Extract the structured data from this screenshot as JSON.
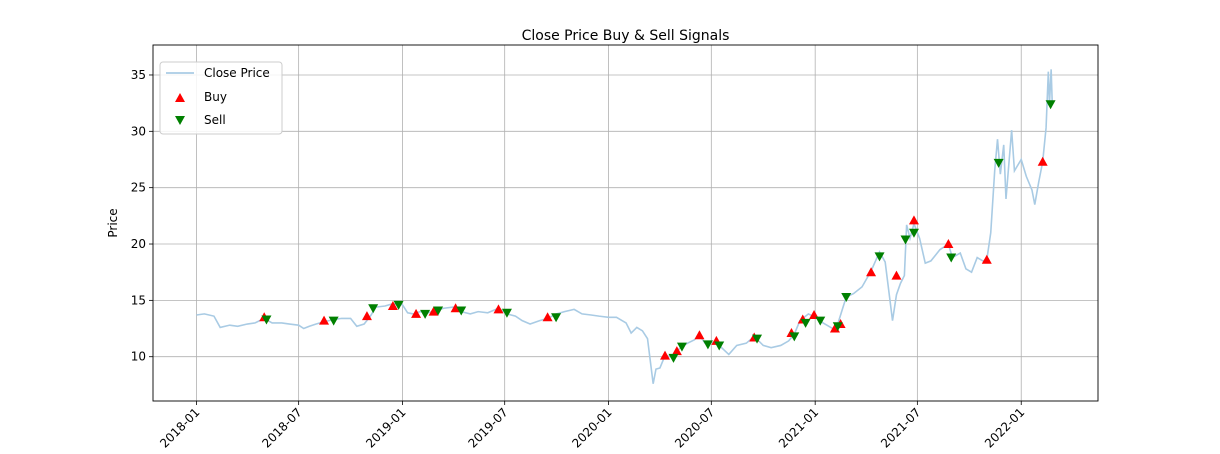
{
  "chart_data": {
    "type": "line",
    "title": "Close Price Buy & Sell Signals",
    "xlabel": "",
    "ylabel": "Price",
    "xlim": [
      "2017-10-16",
      "2022-05-17"
    ],
    "ylim": [
      6.07,
      37.66
    ],
    "grid": true,
    "legend_placement": "top-left",
    "x_ticks": [
      "2018-01",
      "2018-07",
      "2019-01",
      "2019-07",
      "2020-01",
      "2020-07",
      "2021-01",
      "2021-07",
      "2022-01"
    ],
    "y_ticks": [
      10,
      15,
      20,
      25,
      30,
      35
    ],
    "colors": {
      "close": "#a9cbe4",
      "buy": "#ff0000",
      "sell": "#008000",
      "grid": "#b0b0b0"
    },
    "series": [
      {
        "name": "Close Price",
        "type": "line",
        "points": [
          [
            "2018-01-01",
            13.7
          ],
          [
            "2018-01-15",
            13.8
          ],
          [
            "2018-02-01",
            13.6
          ],
          [
            "2018-02-12",
            12.6
          ],
          [
            "2018-03-01",
            12.8
          ],
          [
            "2018-03-15",
            12.7
          ],
          [
            "2018-04-01",
            12.9
          ],
          [
            "2018-04-15",
            13.0
          ],
          [
            "2018-05-01",
            13.4
          ],
          [
            "2018-05-15",
            13.0
          ],
          [
            "2018-06-01",
            13.0
          ],
          [
            "2018-06-15",
            12.9
          ],
          [
            "2018-07-01",
            12.8
          ],
          [
            "2018-07-10",
            12.5
          ],
          [
            "2018-07-20",
            12.7
          ],
          [
            "2018-08-01",
            12.9
          ],
          [
            "2018-08-15",
            13.1
          ],
          [
            "2018-09-01",
            13.3
          ],
          [
            "2018-09-15",
            13.4
          ],
          [
            "2018-10-01",
            13.4
          ],
          [
            "2018-10-12",
            12.7
          ],
          [
            "2018-10-25",
            12.9
          ],
          [
            "2018-11-05",
            13.6
          ],
          [
            "2018-11-15",
            14.4
          ],
          [
            "2018-12-01",
            14.5
          ],
          [
            "2018-12-15",
            14.7
          ],
          [
            "2019-01-01",
            14.6
          ],
          [
            "2019-01-10",
            13.9
          ],
          [
            "2019-01-20",
            13.8
          ],
          [
            "2019-02-01",
            14.0
          ],
          [
            "2019-02-15",
            13.9
          ],
          [
            "2019-03-01",
            14.1
          ],
          [
            "2019-03-15",
            14.3
          ],
          [
            "2019-04-01",
            14.4
          ],
          [
            "2019-04-15",
            14.0
          ],
          [
            "2019-05-01",
            13.8
          ],
          [
            "2019-05-15",
            14.0
          ],
          [
            "2019-06-01",
            13.9
          ],
          [
            "2019-06-20",
            14.3
          ],
          [
            "2019-07-05",
            13.8
          ],
          [
            "2019-07-20",
            13.6
          ],
          [
            "2019-08-01",
            13.2
          ],
          [
            "2019-08-15",
            12.9
          ],
          [
            "2019-09-01",
            13.2
          ],
          [
            "2019-09-15",
            13.4
          ],
          [
            "2019-10-01",
            13.8
          ],
          [
            "2019-10-15",
            14.0
          ],
          [
            "2019-11-01",
            14.2
          ],
          [
            "2019-11-15",
            13.8
          ],
          [
            "2019-12-01",
            13.7
          ],
          [
            "2019-12-15",
            13.6
          ],
          [
            "2020-01-01",
            13.5
          ],
          [
            "2020-01-15",
            13.5
          ],
          [
            "2020-02-01",
            13.0
          ],
          [
            "2020-02-10",
            12.1
          ],
          [
            "2020-02-20",
            12.6
          ],
          [
            "2020-03-01",
            12.3
          ],
          [
            "2020-03-10",
            11.6
          ],
          [
            "2020-03-20",
            7.6
          ],
          [
            "2020-03-25",
            8.9
          ],
          [
            "2020-04-01",
            9.0
          ],
          [
            "2020-04-10",
            10.1
          ],
          [
            "2020-04-20",
            10.0
          ],
          [
            "2020-05-01",
            10.5
          ],
          [
            "2020-05-10",
            10.9
          ],
          [
            "2020-05-20",
            11.2
          ],
          [
            "2020-06-01",
            11.5
          ],
          [
            "2020-06-10",
            11.9
          ],
          [
            "2020-06-20",
            11.2
          ],
          [
            "2020-07-01",
            11.3
          ],
          [
            "2020-07-15",
            11.0
          ],
          [
            "2020-08-01",
            10.2
          ],
          [
            "2020-08-15",
            11.0
          ],
          [
            "2020-09-01",
            11.2
          ],
          [
            "2020-09-15",
            11.8
          ],
          [
            "2020-10-01",
            11.0
          ],
          [
            "2020-10-15",
            10.8
          ],
          [
            "2020-11-01",
            11.0
          ],
          [
            "2020-11-15",
            11.4
          ],
          [
            "2020-11-25",
            12.0
          ],
          [
            "2020-12-05",
            13.2
          ],
          [
            "2020-12-20",
            13.8
          ],
          [
            "2021-01-05",
            13.4
          ],
          [
            "2021-01-15",
            13.0
          ],
          [
            "2021-02-01",
            12.5
          ],
          [
            "2021-02-10",
            12.9
          ],
          [
            "2021-02-25",
            15.3
          ],
          [
            "2021-03-10",
            15.6
          ],
          [
            "2021-03-25",
            16.2
          ],
          [
            "2021-04-10",
            17.6
          ],
          [
            "2021-04-25",
            19.3
          ],
          [
            "2021-05-05",
            18.4
          ],
          [
            "2021-05-18",
            13.2
          ],
          [
            "2021-05-25",
            15.5
          ],
          [
            "2021-06-01",
            16.5
          ],
          [
            "2021-06-08",
            17.2
          ],
          [
            "2021-06-12",
            21.7
          ],
          [
            "2021-06-18",
            20.5
          ],
          [
            "2021-06-25",
            21.8
          ],
          [
            "2021-07-05",
            20.5
          ],
          [
            "2021-07-15",
            18.3
          ],
          [
            "2021-07-25",
            18.5
          ],
          [
            "2021-08-10",
            19.5
          ],
          [
            "2021-08-25",
            20.0
          ],
          [
            "2021-09-01",
            18.8
          ],
          [
            "2021-09-15",
            19.2
          ],
          [
            "2021-09-25",
            17.8
          ],
          [
            "2021-10-05",
            17.5
          ],
          [
            "2021-10-15",
            18.8
          ],
          [
            "2021-10-25",
            18.5
          ],
          [
            "2021-11-01",
            18.6
          ],
          [
            "2021-11-08",
            21.0
          ],
          [
            "2021-11-15",
            26.5
          ],
          [
            "2021-11-20",
            29.3
          ],
          [
            "2021-11-25",
            26.2
          ],
          [
            "2021-12-01",
            28.8
          ],
          [
            "2021-12-05",
            24.0
          ],
          [
            "2021-12-15",
            30.1
          ],
          [
            "2021-12-20",
            26.5
          ],
          [
            "2022-01-01",
            27.5
          ],
          [
            "2022-01-10",
            26.0
          ],
          [
            "2022-01-20",
            24.8
          ],
          [
            "2022-01-25",
            23.5
          ],
          [
            "2022-02-01",
            25.5
          ],
          [
            "2022-02-08",
            27.3
          ],
          [
            "2022-02-14",
            30.3
          ],
          [
            "2022-02-18",
            35.3
          ],
          [
            "2022-02-20",
            32.4
          ],
          [
            "2022-02-23",
            35.5
          ],
          [
            "2022-02-25",
            32.4
          ]
        ]
      },
      {
        "name": "Buy",
        "type": "scatter",
        "marker": "triangle-up",
        "points": [
          [
            "2018-05-01",
            13.5
          ],
          [
            "2018-08-15",
            13.2
          ],
          [
            "2018-10-30",
            13.6
          ],
          [
            "2018-12-15",
            14.5
          ],
          [
            "2019-01-25",
            13.8
          ],
          [
            "2019-02-25",
            14.0
          ],
          [
            "2019-04-05",
            14.3
          ],
          [
            "2019-06-20",
            14.2
          ],
          [
            "2019-09-15",
            13.5
          ],
          [
            "2020-04-10",
            10.1
          ],
          [
            "2020-05-01",
            10.5
          ],
          [
            "2020-06-10",
            11.9
          ],
          [
            "2020-07-10",
            11.4
          ],
          [
            "2020-09-15",
            11.7
          ],
          [
            "2020-11-20",
            12.1
          ],
          [
            "2020-12-10",
            13.3
          ],
          [
            "2020-12-30",
            13.7
          ],
          [
            "2021-02-05",
            12.5
          ],
          [
            "2021-02-15",
            12.9
          ],
          [
            "2021-04-10",
            17.5
          ],
          [
            "2021-05-25",
            17.2
          ],
          [
            "2021-06-25",
            22.1
          ],
          [
            "2021-08-25",
            20.0
          ],
          [
            "2021-11-01",
            18.6
          ],
          [
            "2022-02-08",
            27.3
          ]
        ]
      },
      {
        "name": "Sell",
        "type": "scatter",
        "marker": "triangle-down",
        "points": [
          [
            "2018-05-05",
            13.3
          ],
          [
            "2018-09-01",
            13.2
          ],
          [
            "2018-11-10",
            14.3
          ],
          [
            "2018-12-25",
            14.6
          ],
          [
            "2019-02-10",
            13.8
          ],
          [
            "2019-03-05",
            14.1
          ],
          [
            "2019-04-15",
            14.1
          ],
          [
            "2019-07-05",
            13.9
          ],
          [
            "2019-09-30",
            13.5
          ],
          [
            "2020-04-25",
            9.9
          ],
          [
            "2020-05-10",
            10.9
          ],
          [
            "2020-06-25",
            11.1
          ],
          [
            "2020-07-15",
            11.0
          ],
          [
            "2020-09-20",
            11.6
          ],
          [
            "2020-11-25",
            11.8
          ],
          [
            "2020-12-15",
            13.0
          ],
          [
            "2021-01-10",
            13.2
          ],
          [
            "2021-02-10",
            12.7
          ],
          [
            "2021-02-25",
            15.3
          ],
          [
            "2021-04-25",
            18.9
          ],
          [
            "2021-06-10",
            20.4
          ],
          [
            "2021-06-25",
            21.0
          ],
          [
            "2021-08-30",
            18.8
          ],
          [
            "2021-11-22",
            27.2
          ],
          [
            "2022-02-22",
            32.4
          ]
        ]
      }
    ]
  }
}
